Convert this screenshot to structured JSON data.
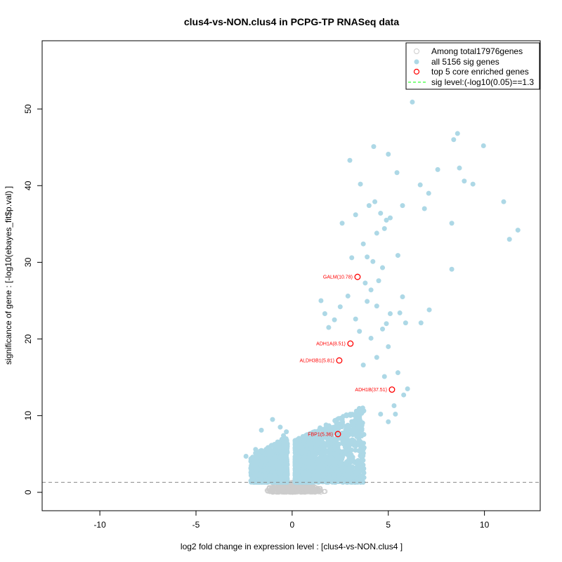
{
  "chart_data": {
    "type": "scatter",
    "title": "clus4-vs-NON.clus4 in PCPG-TP RNASeq data",
    "xlabel": "log2 fold change in expression level : [clus4-vs-NON.clus4 ]",
    "ylabel": "significance of gene : [-log10(ebayes_fit$p.val) ]",
    "xlim": [
      -13,
      12.9
    ],
    "ylim": [
      -2.4,
      58.9
    ],
    "xticks": [
      -10,
      -5,
      0,
      5,
      10
    ],
    "yticks": [
      0,
      10,
      20,
      30,
      40,
      50
    ],
    "grid": false,
    "sig_level": 1.3,
    "legend": {
      "placement": "top-right",
      "entries": [
        {
          "label": "Among total17976genes",
          "symbol": "open-circle",
          "color": "#cccccc"
        },
        {
          "label": "all 5156 sig genes",
          "symbol": "filled-circle",
          "color": "#add8e6"
        },
        {
          "label": "top 5 core enriched genes",
          "symbol": "open-circle",
          "color": "#ff0000"
        },
        {
          "label": "sig level:(-log10(0.05)==1.3",
          "symbol": "dashed-line",
          "color": "#00ff00"
        }
      ]
    },
    "colors": {
      "nonsig": "#cccccc",
      "sig": "#add8e6",
      "core": "#ff0000",
      "sigline": "#888888"
    },
    "core_genes": [
      {
        "label": "GALM(10.78)",
        "x": 3.4,
        "y": 28.1
      },
      {
        "label": "ADH1A(8.51)",
        "x": 3.03,
        "y": 19.4
      },
      {
        "label": "ALDH3B1(5.81)",
        "x": 2.45,
        "y": 17.2
      },
      {
        "label": "ADH1B(37.51)",
        "x": 5.19,
        "y": 13.4
      },
      {
        "label": "FBP1(5.36)",
        "x": 2.38,
        "y": 7.6
      }
    ],
    "sig_outliers": [
      [
        6.25,
        50.9
      ],
      [
        8.6,
        46.8
      ],
      [
        8.4,
        46.0
      ],
      [
        9.95,
        45.2
      ],
      [
        4.24,
        45.1
      ],
      [
        5.0,
        44.1
      ],
      [
        3.0,
        43.3
      ],
      [
        5.45,
        41.7
      ],
      [
        7.57,
        42.1
      ],
      [
        8.7,
        42.3
      ],
      [
        6.66,
        40.1
      ],
      [
        7.1,
        39.0
      ],
      [
        8.95,
        40.6
      ],
      [
        9.4,
        40.2
      ],
      [
        3.55,
        40.2
      ],
      [
        11.0,
        37.9
      ],
      [
        6.88,
        37.0
      ],
      [
        5.74,
        37.4
      ],
      [
        8.3,
        35.1
      ],
      [
        11.74,
        34.2
      ],
      [
        11.3,
        33.0
      ],
      [
        8.3,
        29.1
      ],
      [
        7.13,
        23.8
      ],
      [
        6.7,
        22.1
      ],
      [
        5.74,
        25.5
      ],
      [
        5.37,
        10.2
      ],
      [
        4.0,
        37.4
      ],
      [
        4.3,
        37.9
      ],
      [
        4.6,
        36.4
      ],
      [
        4.9,
        35.5
      ],
      [
        5.1,
        35.8
      ],
      [
        4.4,
        33.8
      ],
      [
        3.7,
        32.4
      ],
      [
        3.3,
        36.2
      ],
      [
        2.6,
        35.1
      ],
      [
        4.8,
        34.4
      ],
      [
        3.9,
        30.7
      ],
      [
        4.2,
        30.1
      ],
      [
        4.7,
        29.3
      ],
      [
        5.5,
        30.9
      ],
      [
        3.1,
        30.6
      ],
      [
        4.5,
        27.6
      ],
      [
        3.8,
        27.3
      ],
      [
        4.1,
        26.4
      ],
      [
        2.9,
        25.6
      ],
      [
        1.5,
        25.0
      ],
      [
        3.9,
        24.9
      ],
      [
        4.4,
        24.3
      ],
      [
        2.5,
        24.2
      ],
      [
        5.1,
        23.3
      ],
      [
        4.9,
        22.0
      ],
      [
        5.6,
        23.4
      ],
      [
        1.7,
        23.3
      ],
      [
        3.3,
        22.6
      ],
      [
        2.2,
        22.5
      ],
      [
        4.7,
        21.3
      ],
      [
        3.5,
        21.0
      ],
      [
        1.9,
        21.5
      ],
      [
        4.1,
        20.1
      ],
      [
        5.9,
        22.1
      ],
      [
        5.0,
        19.0
      ],
      [
        4.4,
        17.6
      ],
      [
        3.7,
        16.6
      ],
      [
        5.5,
        15.6
      ],
      [
        4.8,
        15.1
      ],
      [
        6.0,
        13.5
      ],
      [
        5.8,
        12.7
      ],
      [
        5.3,
        11.3
      ],
      [
        4.6,
        10.2
      ],
      [
        5.0,
        9.2
      ],
      [
        -0.62,
        8.5
      ],
      [
        -1.02,
        9.5
      ],
      [
        -1.6,
        8.1
      ],
      [
        -1.9,
        5.6
      ],
      [
        -2.4,
        4.7
      ],
      [
        -0.3,
        7.9
      ],
      [
        -0.45,
        7.4
      ]
    ]
  }
}
